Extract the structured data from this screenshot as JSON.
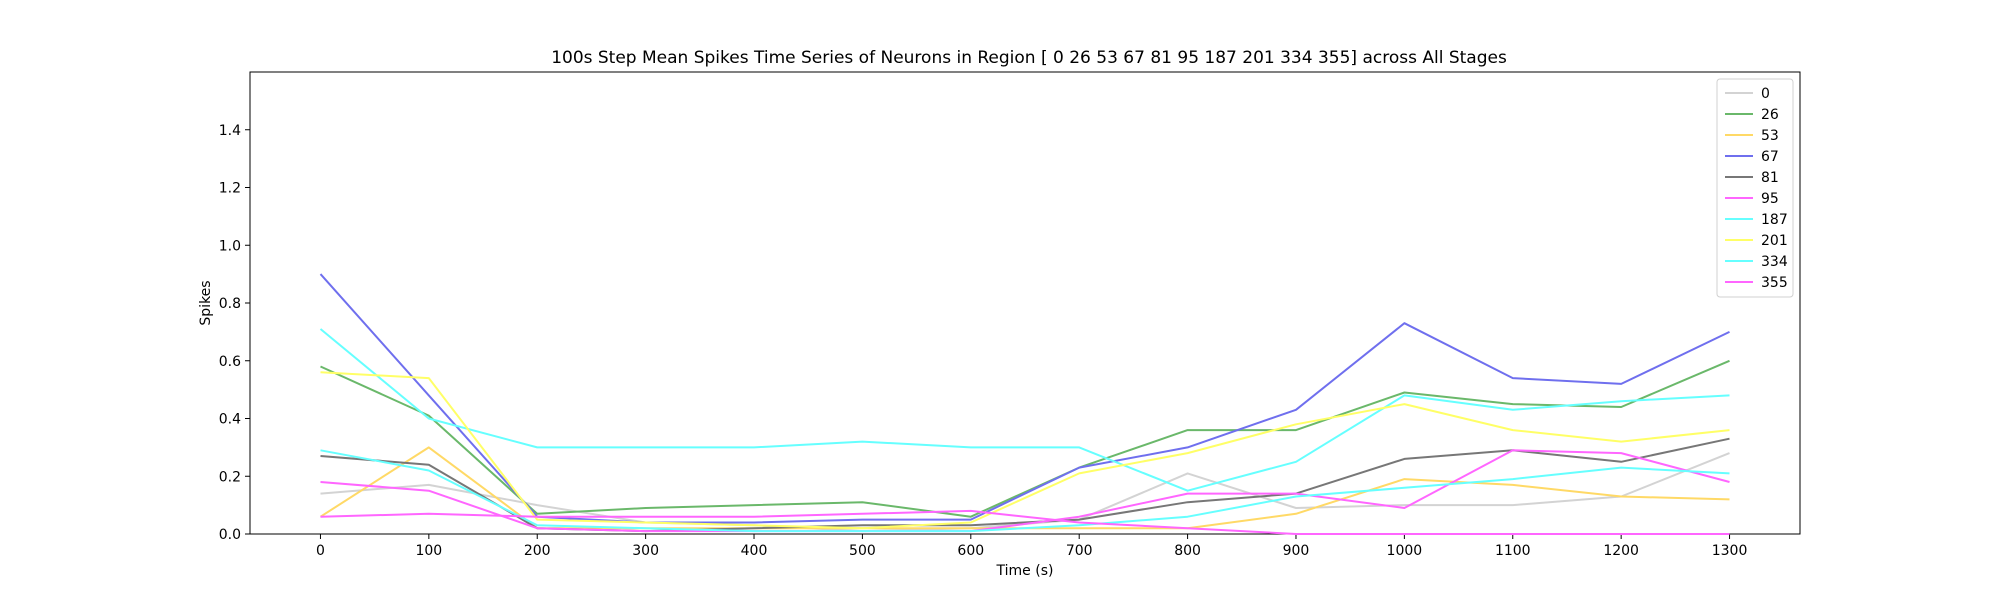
{
  "chart_data": {
    "type": "line",
    "title": "100s Step Mean Spikes Time Series of Neurons in Region [  0  26  53  67  81  95 187 201 334 355] across All Stages",
    "xlabel": "Time (s)",
    "ylabel": "Spikes",
    "xlim": [
      -65,
      1365
    ],
    "ylim": [
      0,
      1.6
    ],
    "x": [
      0,
      100,
      200,
      300,
      400,
      500,
      600,
      700,
      800,
      900,
      1000,
      1100,
      1200,
      1300
    ],
    "x_ticks": [
      "0",
      "100",
      "200",
      "300",
      "400",
      "500",
      "600",
      "700",
      "800",
      "900",
      "1000",
      "1100",
      "1200",
      "1300"
    ],
    "y_ticks": [
      "0.0",
      "0.2",
      "0.4",
      "0.6",
      "0.8",
      "1.0",
      "1.2",
      "1.4"
    ],
    "legend_position": "top-right",
    "grid": false,
    "series": [
      {
        "name": "0",
        "color": "#d3d3d3",
        "values": [
          0.14,
          0.17,
          0.1,
          0.04,
          0.03,
          0.01,
          0.02,
          0.05,
          0.21,
          0.09,
          0.1,
          0.1,
          0.13,
          0.28
        ]
      },
      {
        "name": "26",
        "color": "#6ab86a",
        "values": [
          0.58,
          0.41,
          0.07,
          0.09,
          0.1,
          0.11,
          0.06,
          0.23,
          0.36,
          0.36,
          0.49,
          0.45,
          0.44,
          0.6
        ]
      },
      {
        "name": "53",
        "color": "#ffd966",
        "values": [
          0.06,
          0.3,
          0.02,
          0.02,
          0.02,
          0.02,
          0.02,
          0.02,
          0.02,
          0.07,
          0.19,
          0.17,
          0.13,
          0.12
        ]
      },
      {
        "name": "67",
        "color": "#6f6fee",
        "values": [
          0.9,
          0.48,
          0.06,
          0.04,
          0.04,
          0.05,
          0.05,
          0.23,
          0.3,
          0.43,
          0.73,
          0.54,
          0.52,
          0.7
        ]
      },
      {
        "name": "81",
        "color": "#777777",
        "values": [
          0.27,
          0.24,
          0.02,
          0.01,
          0.02,
          0.03,
          0.03,
          0.05,
          0.11,
          0.14,
          0.26,
          0.29,
          0.25,
          0.33
        ]
      },
      {
        "name": "95",
        "color": "#ff66ff",
        "values": [
          0.18,
          0.15,
          0.02,
          0.01,
          0.01,
          0.01,
          0.01,
          0.06,
          0.14,
          0.14,
          0.09,
          0.29,
          0.28,
          0.18
        ]
      },
      {
        "name": "187",
        "color": "#66ffff",
        "values": [
          0.71,
          0.4,
          0.3,
          0.3,
          0.3,
          0.32,
          0.3,
          0.3,
          0.15,
          0.25,
          0.48,
          0.43,
          0.46,
          0.48
        ]
      },
      {
        "name": "201",
        "color": "#ffff66",
        "values": [
          0.56,
          0.54,
          0.05,
          0.04,
          0.03,
          0.02,
          0.04,
          0.21,
          0.28,
          0.38,
          0.45,
          0.36,
          0.32,
          0.36
        ]
      },
      {
        "name": "334",
        "color": "#66ffff",
        "values": [
          0.29,
          0.22,
          0.03,
          0.02,
          0.01,
          0.01,
          0.01,
          0.03,
          0.06,
          0.13,
          0.16,
          0.19,
          0.23,
          0.21
        ]
      },
      {
        "name": "355",
        "color": "#ff66ff",
        "values": [
          0.06,
          0.07,
          0.06,
          0.06,
          0.06,
          0.07,
          0.08,
          0.04,
          0.02,
          0.0,
          0.0,
          0.0,
          0.0,
          0.0
        ]
      }
    ]
  }
}
